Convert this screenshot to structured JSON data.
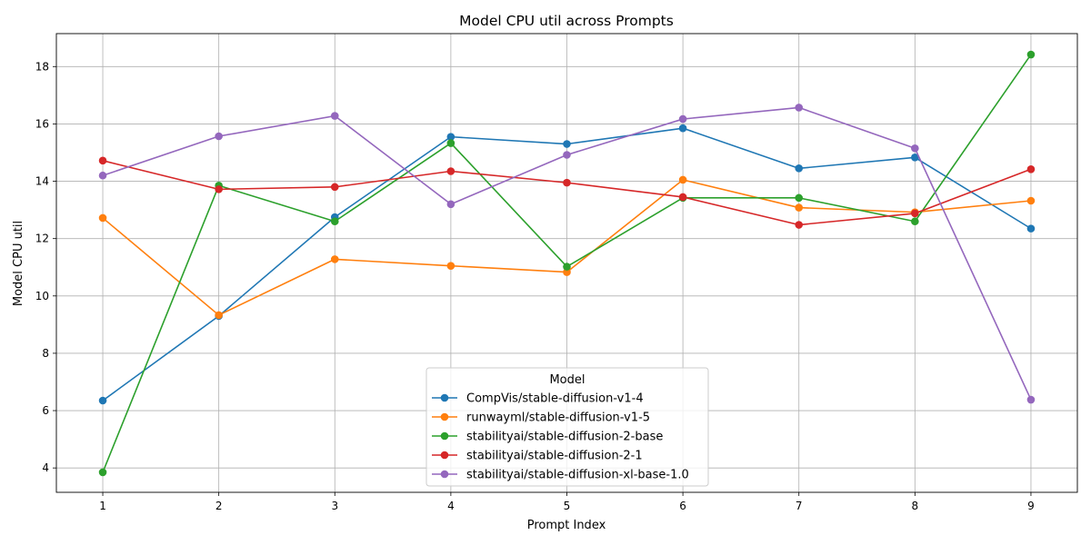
{
  "chart_data": {
    "type": "line",
    "title": "Model CPU util across Prompts",
    "xlabel": "Prompt Index",
    "ylabel": "Model CPU util",
    "x": [
      1,
      2,
      3,
      4,
      5,
      6,
      7,
      8,
      9
    ],
    "xlim": [
      0.6,
      9.4
    ],
    "ylim": [
      3.15,
      19.15
    ],
    "yticks": [
      4,
      6,
      8,
      10,
      12,
      14,
      16,
      18
    ],
    "grid": true,
    "legend": {
      "title": "Model",
      "placement": "lower center"
    },
    "series": [
      {
        "name": "CompVis/stable-diffusion-v1-4",
        "color": "#1f77b4",
        "values": [
          6.35,
          9.3,
          12.75,
          15.55,
          15.3,
          15.85,
          14.45,
          14.83,
          12.35
        ]
      },
      {
        "name": "runwayml/stable-diffusion-v1-5",
        "color": "#ff7f0e",
        "values": [
          12.72,
          9.33,
          11.28,
          11.05,
          10.83,
          14.05,
          13.08,
          12.92,
          13.32
        ]
      },
      {
        "name": "stabilityai/stable-diffusion-2-base",
        "color": "#2ca02c",
        "values": [
          3.85,
          13.85,
          12.6,
          15.33,
          11.02,
          13.42,
          13.42,
          12.6,
          18.42
        ]
      },
      {
        "name": "stabilityai/stable-diffusion-2-1",
        "color": "#d62728",
        "values": [
          14.72,
          13.72,
          13.8,
          14.35,
          13.95,
          13.45,
          12.48,
          12.88,
          14.42
        ]
      },
      {
        "name": "stabilityai/stable-diffusion-xl-base-1.0",
        "color": "#9467bd",
        "values": [
          14.2,
          15.57,
          16.28,
          13.2,
          14.92,
          16.17,
          16.57,
          15.15,
          6.38
        ]
      }
    ]
  }
}
